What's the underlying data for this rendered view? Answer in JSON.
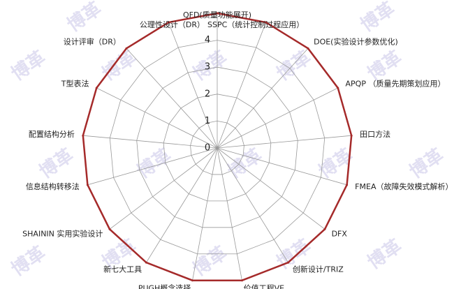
{
  "chart_data": {
    "type": "radar",
    "categories": [
      "QFD(质量功能展开)",
      "SSPC（统计控制过程应用）",
      "DOE(实验设计参数优化)",
      "APQP （质量先期策划应用）",
      "田口方法",
      "FMEA（故障失效模式解析）",
      "DFX",
      "创新设计/TRIZ",
      "价值工程VE",
      "PUGH概念选择",
      "新七大工具",
      "SHAININ 实用实验设计",
      "信息结构转移法",
      "配置结构分析",
      "T型表法",
      "设计评审（DR）",
      "公理性设计（DR）"
    ],
    "values": [
      5,
      5,
      5,
      5,
      5,
      5,
      5,
      5,
      5,
      5,
      5,
      5,
      5,
      5,
      5,
      5,
      5
    ],
    "color": "#a52a2a",
    "ylim": [
      0,
      5
    ],
    "yticks": [
      0,
      1,
      2,
      3,
      4
    ],
    "grid": true,
    "watermark": "博革"
  }
}
